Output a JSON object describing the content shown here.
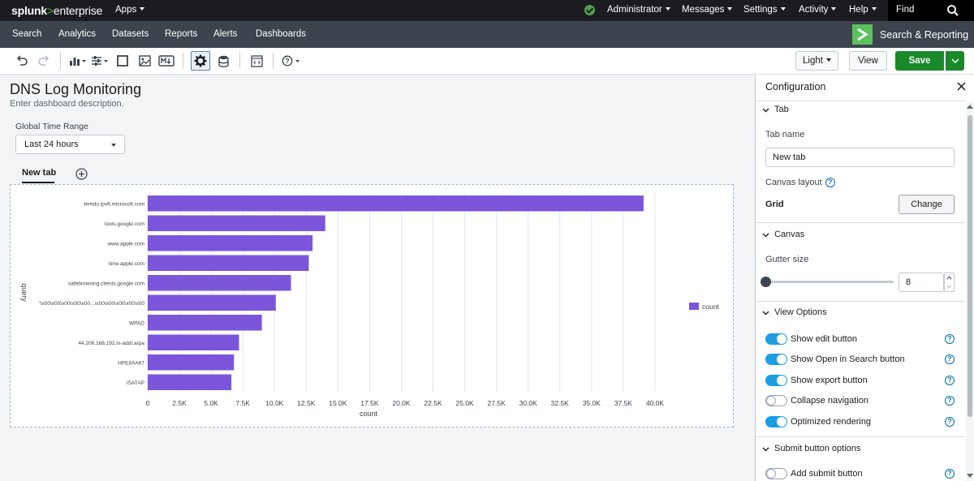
{
  "topbar": {
    "logo_main": "splunk",
    "logo_gt": ">",
    "logo_product": "enterprise",
    "apps": "Apps",
    "administrator": "Administrator",
    "messages": "Messages",
    "settings": "Settings",
    "activity": "Activity",
    "help": "Help",
    "find": "Find"
  },
  "navbar": {
    "items": [
      "Search",
      "Analytics",
      "Datasets",
      "Reports",
      "Alerts",
      "Dashboards"
    ],
    "app_name": "Search & Reporting"
  },
  "toolbar": {
    "theme": "Light",
    "view": "View",
    "save": "Save"
  },
  "dashboard": {
    "title": "DNS Log Monitoring",
    "description": "Enter dashboard description.",
    "time_input_label": "Global Time Range",
    "time_input_value": "Last 24 hours",
    "tab_label": "New tab"
  },
  "chart_data": {
    "type": "bar",
    "orientation": "horizontal",
    "categories": [
      "teredo.ipv6.microsoft.com",
      "tools.google.com",
      "www.apple.com",
      "time.apple.com",
      "safebrowsing.clients.google.com",
      "\"\\x00\\x00\\x00\\x00\\x00...\\x00\\x00\\x00\\x00\\x00",
      "WPAD",
      "44.206.168.192.in-addr.arpa",
      "HPE8AA67",
      "ISATAP"
    ],
    "series": [
      {
        "name": "count",
        "values": [
          39100,
          14000,
          13000,
          12700,
          11300,
          10100,
          9000,
          7200,
          6800,
          6600
        ],
        "color": "#7b56db"
      }
    ],
    "xlabel": "count",
    "ylabel": "query",
    "xlim": [
      0,
      42500
    ],
    "xticks": [
      "0",
      "2.5K",
      "5.0K",
      "7.5K",
      "10.0K",
      "12.5K",
      "15.0K",
      "17.5K",
      "20.0K",
      "22.5K",
      "25.0K",
      "27.5K",
      "30.0K",
      "32.5K",
      "35.0K",
      "37.5K",
      "40.0K"
    ],
    "legend_position": "right",
    "grid": true
  },
  "panel": {
    "title": "Configuration",
    "tab_section": "Tab",
    "tab_name_label": "Tab name",
    "tab_name_value": "New tab",
    "canvas_layout_label": "Canvas layout",
    "canvas_layout_value": "Grid",
    "change_button": "Change",
    "canvas_section": "Canvas",
    "gutter_label": "Gutter size",
    "gutter_value": "8",
    "gutter_slider_fraction": 0,
    "view_options_section": "View Options",
    "toggles": [
      {
        "label": "Show edit button",
        "on": true
      },
      {
        "label": "Show Open in Search button",
        "on": true
      },
      {
        "label": "Show export button",
        "on": true
      },
      {
        "label": "Collapse navigation",
        "on": false
      },
      {
        "label": "Optimized rendering",
        "on": true
      }
    ],
    "submit_section": "Submit button options",
    "submit_toggle": {
      "label": "Add submit button",
      "on": false
    }
  }
}
